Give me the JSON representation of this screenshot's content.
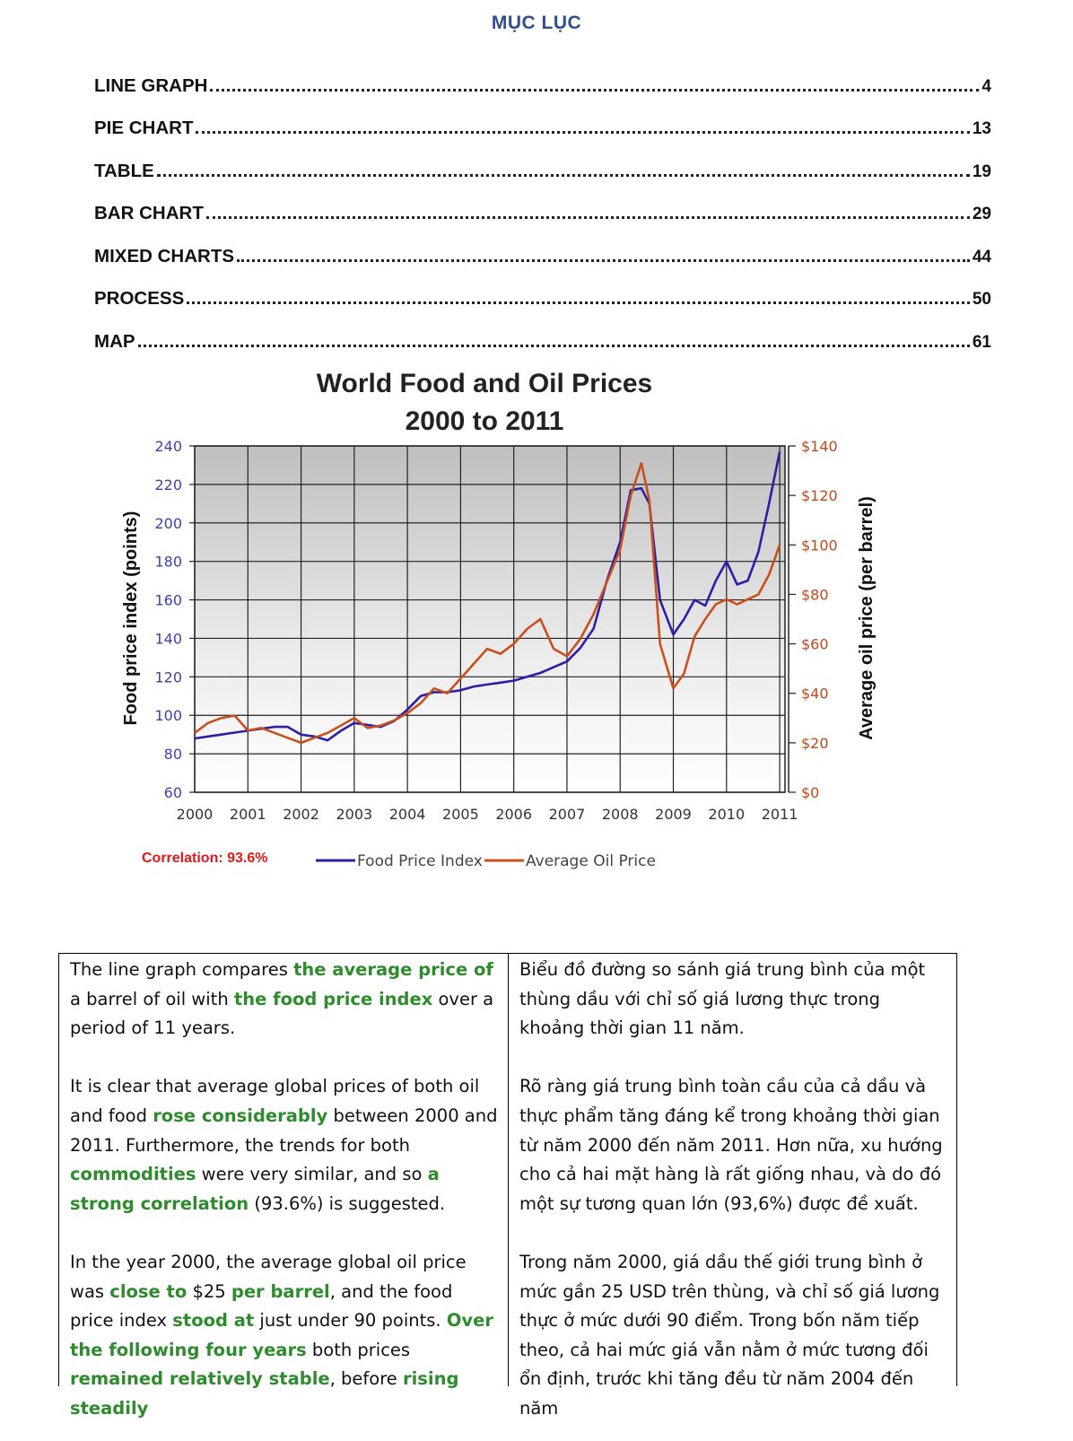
{
  "toc": {
    "title": "MỤC LỤC",
    "items": [
      {
        "label": "LINE GRAPH",
        "page": "4"
      },
      {
        "label": "PIE CHART",
        "page": "13"
      },
      {
        "label": "TABLE",
        "page": "19"
      },
      {
        "label": "BAR CHART",
        "page": "29"
      },
      {
        "label": "MIXED CHARTS",
        "page": "44"
      },
      {
        "label": "PROCESS",
        "page": "50"
      },
      {
        "label": "MAP",
        "page": "61"
      }
    ]
  },
  "chart_data": {
    "type": "line",
    "title": "World Food and Oil Prices",
    "subtitle": "2000 to 2011",
    "xlabel": "",
    "ylabel": "Food price index (points)",
    "y2label": "Average oil price (per barrel)",
    "xlim": [
      2000,
      2011.1
    ],
    "ylim": [
      60,
      240
    ],
    "y2lim": [
      0,
      140
    ],
    "x_ticks": [
      "2000",
      "2001",
      "2002",
      "2003",
      "2004",
      "2005",
      "2006",
      "2007",
      "2008",
      "2009",
      "2010",
      "2011"
    ],
    "y_ticks": [
      "60",
      "80",
      "100",
      "120",
      "140",
      "160",
      "180",
      "200",
      "220",
      "240"
    ],
    "y2_ticks": [
      "$0",
      "$20",
      "$40",
      "$60",
      "$80",
      "$100",
      "$120",
      "$140"
    ],
    "grid": true,
    "legend_position": "bottom",
    "annotation": "Correlation: 93.6%",
    "series": [
      {
        "name": "Food Price Index",
        "color": "#2b1fa6",
        "axis": "left",
        "x": [
          2000,
          2000.25,
          2000.5,
          2000.75,
          2001,
          2001.25,
          2001.5,
          2001.75,
          2002,
          2002.25,
          2002.5,
          2002.75,
          2003,
          2003.25,
          2003.5,
          2003.75,
          2004,
          2004.25,
          2004.5,
          2004.75,
          2005,
          2005.25,
          2005.5,
          2005.75,
          2006,
          2006.25,
          2006.5,
          2006.75,
          2007,
          2007.25,
          2007.5,
          2007.75,
          2008,
          2008.2,
          2008.4,
          2008.55,
          2008.75,
          2009,
          2009.2,
          2009.4,
          2009.6,
          2009.8,
          2010,
          2010.2,
          2010.4,
          2010.6,
          2010.8,
          2011
        ],
        "values": [
          88,
          89,
          90,
          91,
          92,
          93,
          94,
          94,
          90,
          89,
          87,
          92,
          96,
          95,
          94,
          97,
          103,
          110,
          112,
          112,
          113,
          115,
          116,
          117,
          118,
          120,
          122,
          125,
          128,
          135,
          145,
          170,
          190,
          217,
          218,
          210,
          160,
          142,
          150,
          160,
          157,
          170,
          180,
          168,
          170,
          185,
          210,
          237
        ]
      },
      {
        "name": "Average Oil Price",
        "color": "#c9501c",
        "axis": "right",
        "x": [
          2000,
          2000.25,
          2000.5,
          2000.75,
          2001,
          2001.25,
          2001.5,
          2001.75,
          2002,
          2002.25,
          2002.5,
          2002.75,
          2003,
          2003.25,
          2003.5,
          2003.75,
          2004,
          2004.25,
          2004.5,
          2004.75,
          2005,
          2005.25,
          2005.5,
          2005.75,
          2006,
          2006.25,
          2006.5,
          2006.75,
          2007,
          2007.25,
          2007.5,
          2007.75,
          2008,
          2008.2,
          2008.4,
          2008.55,
          2008.75,
          2009,
          2009.2,
          2009.4,
          2009.6,
          2009.8,
          2010,
          2010.2,
          2010.4,
          2010.6,
          2010.8,
          2011
        ],
        "values": [
          24,
          28,
          30,
          31,
          25,
          26,
          24,
          22,
          20,
          22,
          24,
          27,
          30,
          26,
          27,
          29,
          32,
          36,
          42,
          40,
          46,
          52,
          58,
          56,
          60,
          66,
          70,
          58,
          55,
          62,
          72,
          85,
          98,
          120,
          133,
          118,
          60,
          42,
          48,
          63,
          70,
          76,
          78,
          76,
          78,
          80,
          88,
          100
        ]
      }
    ]
  },
  "translation": {
    "en": {
      "p1": [
        {
          "t": "The line graph compares "
        },
        {
          "t": "the average price of",
          "h": true
        },
        {
          "t": " a barrel of oil with "
        },
        {
          "t": "the food price index",
          "h": true
        },
        {
          "t": " over a period of 11 years."
        }
      ],
      "p2": [
        {
          "t": "It is clear that average global prices of both oil and food "
        },
        {
          "t": "rose considerably",
          "h": true
        },
        {
          "t": " between 2000 and 2011. Furthermore, the trends for both "
        },
        {
          "t": "commodities",
          "h": true
        },
        {
          "t": " were very similar, and so "
        },
        {
          "t": "a strong correlation",
          "h": true
        },
        {
          "t": " (93.6%) is suggested."
        }
      ],
      "p3": [
        {
          "t": "In the year 2000, the average global oil price was "
        },
        {
          "t": "close to",
          "h": true
        },
        {
          "t": " $25 "
        },
        {
          "t": "per barrel",
          "h": true
        },
        {
          "t": ", and the food price index "
        },
        {
          "t": "stood at",
          "h": true
        },
        {
          "t": " just under 90 points. "
        },
        {
          "t": "Over the following four years",
          "h": true
        },
        {
          "t": " both prices "
        },
        {
          "t": "remained relatively stable",
          "h": true
        },
        {
          "t": ", before "
        },
        {
          "t": "rising steadily",
          "h": true
        }
      ]
    },
    "vi": {
      "p1": "Biểu đồ đường so sánh giá trung bình của một thùng dầu với chỉ số giá lương thực trong khoảng thời gian 11 năm.",
      "p2": "Rõ ràng giá trung bình toàn cầu của cả dầu và thực phẩm tăng đáng kể trong khoảng thời gian từ năm 2000 đến năm 2011. Hơn nữa, xu hướng cho cả hai mặt hàng là rất giống nhau, và do đó một sự tương quan lớn (93,6%) được đề xuất.",
      "p3": "Trong năm 2000, giá dầu thế giới trung bình ở mức gần 25 USD trên thùng, và chỉ số giá lương thực ở mức dưới 90 điểm. Trong bốn năm tiếp theo, cả hai mức giá vẫn nằm ở mức tương đối ổn định, trước khi tăng đều từ năm 2004 đến năm"
    }
  }
}
